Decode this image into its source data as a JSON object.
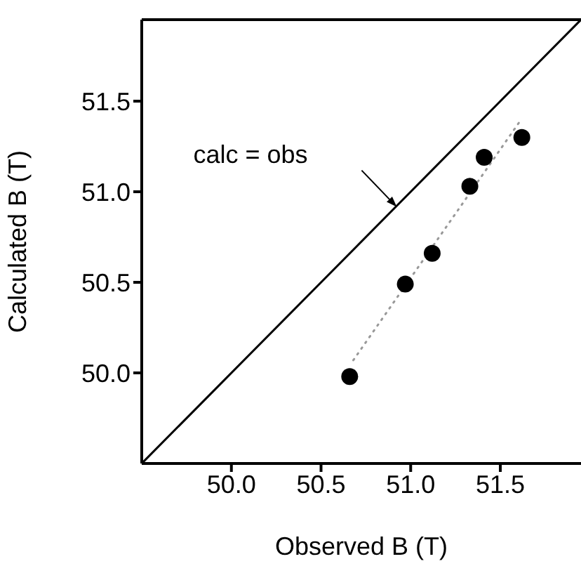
{
  "chart_data": {
    "type": "scatter",
    "xlabel": "Observed B (T)",
    "ylabel": "Calculated B (T)",
    "xlim": [
      49.5,
      51.95
    ],
    "ylim": [
      49.5,
      51.95
    ],
    "xticks": [
      {
        "value": 50.0,
        "label": "50.0"
      },
      {
        "value": 50.5,
        "label": "50.5"
      },
      {
        "value": 51.0,
        "label": "51.0"
      },
      {
        "value": 51.5,
        "label": "51.5"
      }
    ],
    "yticks": [
      {
        "value": 50.0,
        "label": "50.0"
      },
      {
        "value": 50.5,
        "label": "50.5"
      },
      {
        "value": 51.0,
        "label": "51.0"
      },
      {
        "value": 51.5,
        "label": "51.5"
      }
    ],
    "series": [
      {
        "type": "scatter",
        "color": "#000000",
        "marker": "circle",
        "x": [
          50.66,
          50.97,
          51.12,
          51.33,
          51.41,
          51.62
        ],
        "values": [
          49.98,
          50.49,
          50.66,
          51.03,
          51.19,
          51.3
        ]
      },
      {
        "type": "line",
        "color": "#999999",
        "marker": "none",
        "line_style": "dotted",
        "x": [
          50.68,
          51.61
        ],
        "values": [
          50.07,
          51.39
        ]
      },
      {
        "type": "line",
        "color": "#000000",
        "marker": "none",
        "line_style": "solid",
        "x": [
          49.5,
          51.95
        ],
        "values": [
          49.5,
          51.95
        ]
      }
    ],
    "annotations": [
      "calc = obs"
    ]
  }
}
